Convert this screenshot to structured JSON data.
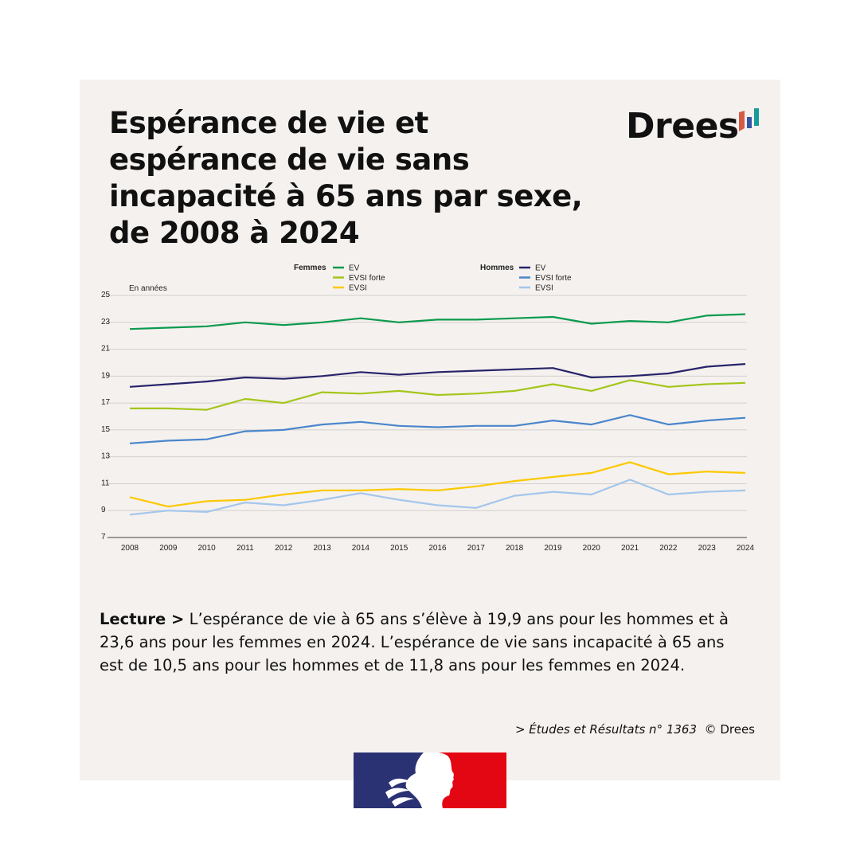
{
  "title": "Espérance de vie et espérance de vie sans incapacité à 65 ans par sexe, de 2008 à 2024",
  "logo": "Drees",
  "lecture": {
    "label": "Lecture >",
    "text": " L’espérance de vie à 65 ans s’élève à 19,9 ans pour les hommes et à 23,6 ans pour les femmes en 2024. L’espérance de vie sans incapacité à 65 ans est de 10,5 ans pour les hommes et de 11,8 ans pour les femmes en 2024."
  },
  "source": {
    "ref": "> Études et Résultats n° 1363",
    "copyright": "© Drees"
  },
  "colors": {
    "panel": "#f5f1ee",
    "f_ev": "#0a9a4e",
    "f_evsi_forte": "#a3c61a",
    "f_evsi": "#fcc800",
    "h_ev": "#27246b",
    "h_evsi_forte": "#4a86cc",
    "h_evsi": "#a3c6ec"
  },
  "chart_data": {
    "type": "line",
    "title": "Espérance de vie et espérance de vie sans incapacité à 65 ans par sexe, de 2008 à 2024",
    "ylabel": "En années",
    "xlabel": "",
    "ylim": [
      7,
      25
    ],
    "yticks": [
      7,
      9,
      11,
      13,
      15,
      17,
      19,
      21,
      23,
      25
    ],
    "grid": true,
    "legend_groups": [
      {
        "group": "Femmes",
        "entries": [
          "EV",
          "EVSI forte",
          "EVSI"
        ]
      },
      {
        "group": "Hommes",
        "entries": [
          "EV",
          "EVSI forte",
          "EVSI"
        ]
      }
    ],
    "x": [
      2008,
      2009,
      2010,
      2011,
      2012,
      2013,
      2014,
      2015,
      2016,
      2017,
      2018,
      2019,
      2020,
      2021,
      2022,
      2023,
      2024
    ],
    "series": [
      {
        "name": "Femmes EV",
        "group": "Femmes",
        "label": "EV",
        "color": "#0a9a4e",
        "values": [
          22.5,
          22.6,
          22.7,
          23.0,
          22.8,
          23.0,
          23.3,
          23.0,
          23.2,
          23.2,
          23.3,
          23.4,
          22.9,
          23.1,
          23.0,
          23.5,
          23.6
        ]
      },
      {
        "name": "Femmes EVSI forte",
        "group": "Femmes",
        "label": "EVSI forte",
        "color": "#a3c61a",
        "values": [
          16.6,
          16.6,
          16.5,
          17.3,
          17.0,
          17.8,
          17.7,
          17.9,
          17.6,
          17.7,
          17.9,
          18.4,
          17.9,
          18.7,
          18.2,
          18.4,
          18.5
        ]
      },
      {
        "name": "Femmes EVSI",
        "group": "Femmes",
        "label": "EVSI",
        "color": "#fcc800",
        "values": [
          10.0,
          9.3,
          9.7,
          9.8,
          10.2,
          10.5,
          10.5,
          10.6,
          10.5,
          10.8,
          11.2,
          11.5,
          11.8,
          12.6,
          11.7,
          11.9,
          11.8
        ]
      },
      {
        "name": "Hommes EV",
        "group": "Hommes",
        "label": "EV",
        "color": "#27246b",
        "values": [
          18.2,
          18.4,
          18.6,
          18.9,
          18.8,
          19.0,
          19.3,
          19.1,
          19.3,
          19.4,
          19.5,
          19.6,
          18.9,
          19.0,
          19.2,
          19.7,
          19.9
        ]
      },
      {
        "name": "Hommes EVSI forte",
        "group": "Hommes",
        "label": "EVSI forte",
        "color": "#4a86cc",
        "values": [
          14.0,
          14.2,
          14.3,
          14.9,
          15.0,
          15.4,
          15.6,
          15.3,
          15.2,
          15.3,
          15.3,
          15.7,
          15.4,
          16.1,
          15.4,
          15.7,
          15.9
        ]
      },
      {
        "name": "Hommes EVSI",
        "group": "Hommes",
        "label": "EVSI",
        "color": "#a3c6ec",
        "values": [
          8.7,
          9.0,
          8.9,
          9.6,
          9.4,
          9.8,
          10.3,
          9.8,
          9.4,
          9.2,
          10.1,
          10.4,
          10.2,
          11.3,
          10.2,
          10.4,
          10.5
        ]
      }
    ]
  }
}
